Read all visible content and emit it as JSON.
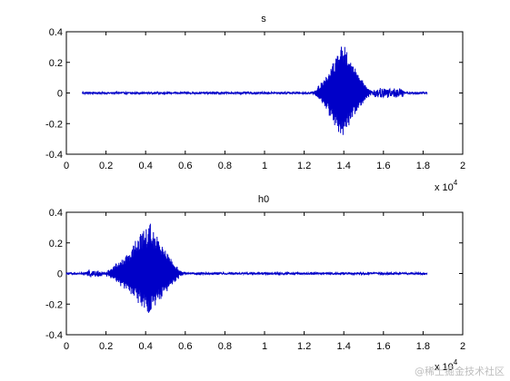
{
  "watermark": "@稀土掘金技术社区",
  "chart_data": [
    {
      "type": "line",
      "title": "s",
      "xlabel": "",
      "ylabel": "",
      "x_exponent_label": "x 10",
      "x_exponent": "4",
      "xlim": [
        0,
        2
      ],
      "ylim": [
        -0.4,
        0.4
      ],
      "xticks": [
        "0",
        "0.2",
        "0.4",
        "0.6",
        "0.8",
        "1",
        "1.2",
        "1.4",
        "1.6",
        "1.8",
        "2"
      ],
      "yticks": [
        "0.4",
        "0.2",
        "0",
        "-0.2",
        "-0.4"
      ],
      "grid": false,
      "line_color": "#0000c8",
      "signal": {
        "x_range": [
          0.08,
          1.82
        ],
        "baseline_noise": 0.006,
        "burst": {
          "start": 1.24,
          "peak": 1.39,
          "end": 1.55,
          "peak_amplitude": 0.34,
          "neg_peak": -0.3
        },
        "tail": {
          "start": 1.55,
          "end": 1.7,
          "amplitude": 0.03
        }
      }
    },
    {
      "type": "line",
      "title": "h0",
      "xlabel": "",
      "ylabel": "",
      "x_exponent_label": "x 10",
      "x_exponent": "4",
      "xlim": [
        0,
        2
      ],
      "ylim": [
        -0.4,
        0.4
      ],
      "xticks": [
        "0",
        "0.2",
        "0.4",
        "0.6",
        "0.8",
        "1",
        "1.2",
        "1.4",
        "1.6",
        "1.8",
        "2"
      ],
      "yticks": [
        "0.4",
        "0.2",
        "0",
        "-0.2",
        "-0.4"
      ],
      "grid": false,
      "line_color": "#0000c8",
      "signal": {
        "x_range": [
          0.0,
          1.82
        ],
        "baseline_noise": 0.006,
        "burst": {
          "start": 0.18,
          "peak": 0.42,
          "end": 0.6,
          "peak_amplitude": 0.34,
          "neg_peak": -0.28
        },
        "tail": {
          "start": 0.1,
          "end": 0.18,
          "amplitude": 0.02
        }
      }
    }
  ]
}
